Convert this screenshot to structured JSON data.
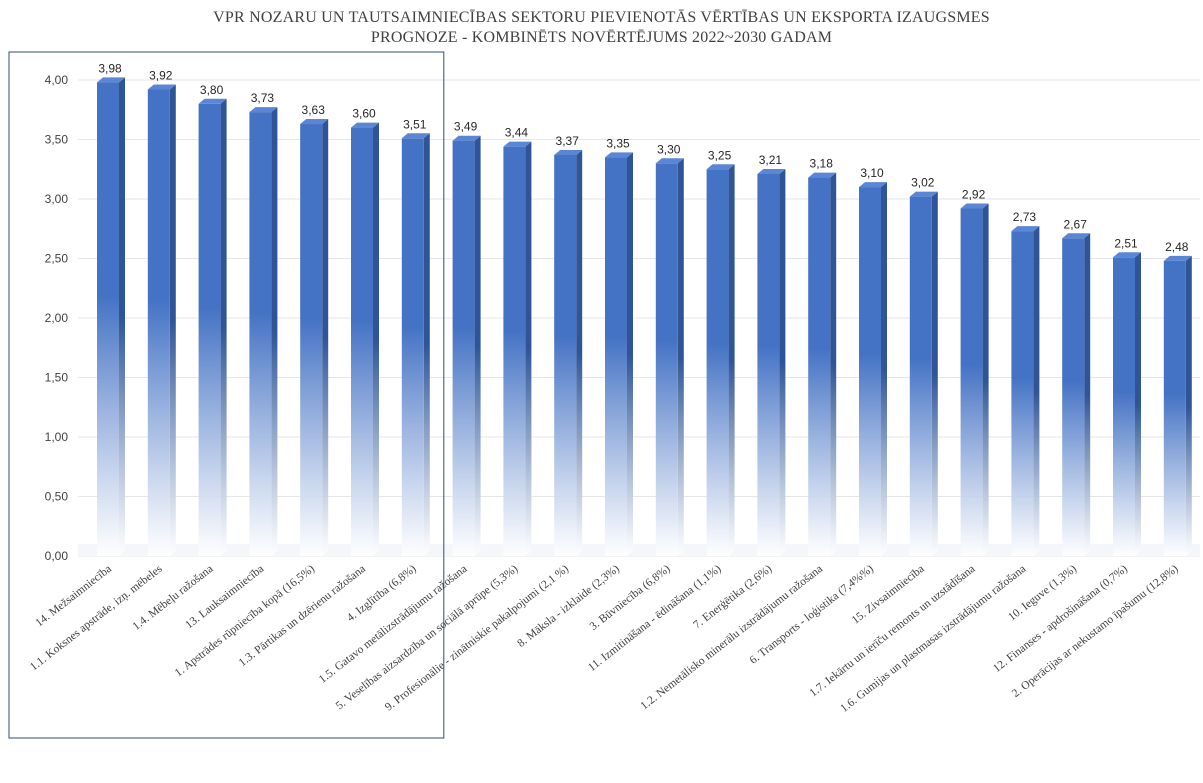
{
  "chart_data": {
    "type": "bar",
    "title_line1": "VPR NOZARU UN TAUTSAIMNIECĪBAS SEKTORU PIEVIENOTĀS VĒRTĪBAS UN EKSPORTA IZAUGSMES",
    "title_line2": "PROGNOZE - KOMBINĒTS NOVĒRTĒJUMS  2022~2030 GADAM",
    "categories": [
      "14. Mežsaimniecība",
      "1.1. Koksnes apstrāde, izņ. mēbeles",
      "1.4. Mēbeļu ražošana",
      "13. Lauksaimniecība",
      "1. Apstrādes rūpniecība kopā (16,5%)",
      "1.3. Pārtikas un dzērienu ražošana",
      "4. Izglītība (6,8%)",
      "1.5. Gatavo metālizstrādājumu ražošana",
      "5. Veselības aizsardzība un sociālā aprūpe (5,3%)",
      "9. Profesionālie - zinātniskie pakalpojumi (2,1 %)",
      "8. Māksla - izklaide (2,3%)",
      "3. Būvniecība (6,8%)",
      "11. Izmitināšana - ēdināšana (1,1%)",
      "7. Enerģētika (2,6%)",
      "1.2. Nemetālisko minerālu izstrādājumu ražošana",
      "6. Transports - loģistika (7,4%%)",
      "15. Zivsaimniecība",
      "1.7. Iekārtu un ierīču remonts un uzstādīšana",
      "1.6. Gumijas un plastmasas izstrādājumu ražošana",
      "10. Ieguve (1,3%)",
      "12. Finanses - apdrošināšana (0,7%)",
      "2. Operācijas ar nekustamo īpašumu (12,8%)"
    ],
    "values": [
      3.98,
      3.92,
      3.8,
      3.73,
      3.63,
      3.6,
      3.51,
      3.49,
      3.44,
      3.37,
      3.35,
      3.3,
      3.25,
      3.21,
      3.18,
      3.1,
      3.02,
      2.92,
      2.73,
      2.67,
      2.51,
      2.48
    ],
    "value_labels": [
      "3,98",
      "3,92",
      "3,80",
      "3,73",
      "3,63",
      "3,60",
      "3,51",
      "3,49",
      "3,44",
      "3,37",
      "3,35",
      "3,30",
      "3,25",
      "3,21",
      "3,18",
      "3,10",
      "3,02",
      "2,92",
      "2,73",
      "2,67",
      "2,51",
      "2,48"
    ],
    "y_tick_values": [
      0,
      0.5,
      1.0,
      1.5,
      2.0,
      2.5,
      3.0,
      3.5,
      4.0
    ],
    "y_tick_labels": [
      "0,00",
      "0,50",
      "1,00",
      "1,50",
      "2,00",
      "2,50",
      "3,00",
      "3,50",
      "4,00"
    ],
    "ylim": [
      0,
      4
    ],
    "grid": true,
    "legend": "none",
    "highlight_box_first_n": 7,
    "colors": {
      "bar": "#4472c4",
      "bar_dark": "#2f5597",
      "bar_top": "#5b86d6",
      "grid": "#e6e6e6",
      "highlight_box": "#2f4e7a"
    }
  }
}
